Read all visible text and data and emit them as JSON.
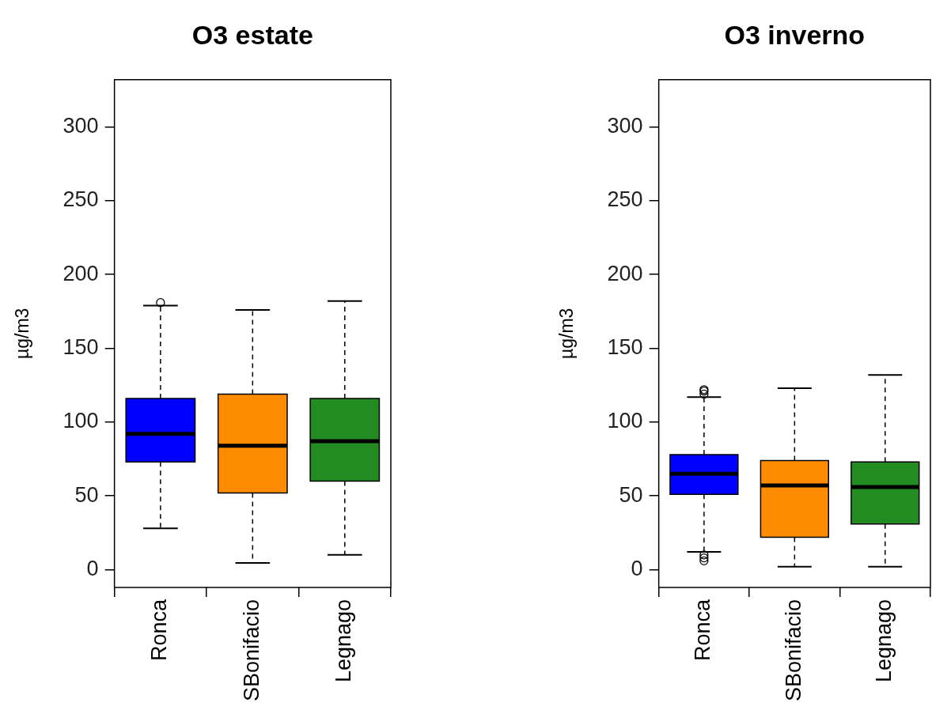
{
  "chart_data": [
    {
      "type": "box",
      "title": "O3 estate",
      "ylabel": "µg/m3",
      "categories": [
        "Ronca",
        "SBonifacio",
        "Legnago"
      ],
      "colors": [
        "#0000ff",
        "#ff8c00",
        "#228b22"
      ],
      "ylim": [
        -12,
        332
      ],
      "yticks": [
        0,
        50,
        100,
        150,
        200,
        250,
        300
      ],
      "boxes": [
        {
          "low": 28,
          "q1": 73,
          "median": 92,
          "q3": 116,
          "high": 179,
          "outliers": [
            181
          ]
        },
        {
          "low": 4.5,
          "q1": 52,
          "median": 84,
          "q3": 119,
          "high": 176
        },
        {
          "low": 10,
          "q1": 60,
          "median": 87,
          "q3": 116,
          "high": 182
        }
      ]
    },
    {
      "type": "box",
      "title": "O3 inverno",
      "ylabel": "µg/m3",
      "categories": [
        "Ronca",
        "SBonifacio",
        "Legnago"
      ],
      "colors": [
        "#0000ff",
        "#ff8c00",
        "#228b22"
      ],
      "ylim": [
        -12,
        332
      ],
      "yticks": [
        0,
        50,
        100,
        150,
        200,
        250,
        300
      ],
      "boxes": [
        {
          "low": 12,
          "q1": 51,
          "median": 65,
          "q3": 78,
          "high": 117,
          "outliers": [
            119,
            121,
            122,
            10,
            8,
            6
          ]
        },
        {
          "low": 2,
          "q1": 22,
          "median": 57,
          "q3": 74,
          "high": 123
        },
        {
          "low": 2,
          "q1": 31,
          "median": 56,
          "q3": 73,
          "high": 132
        }
      ]
    }
  ]
}
